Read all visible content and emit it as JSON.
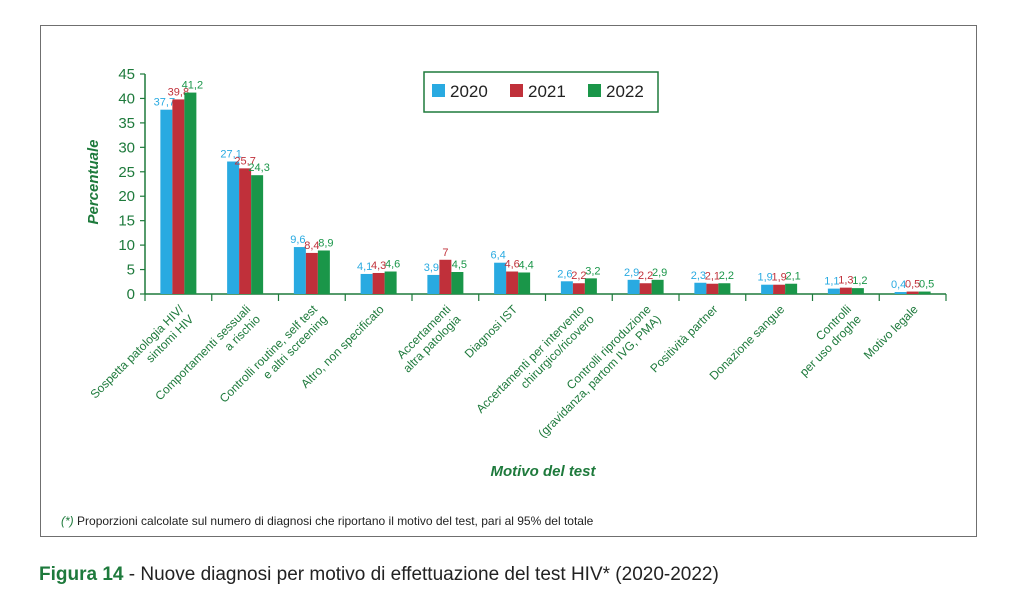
{
  "colors": {
    "2020": "#29aae1",
    "2021": "#c0303a",
    "2022": "#1a9649",
    "axis": "#1e7a3c",
    "text": "#222222"
  },
  "chart_data": {
    "type": "bar",
    "ylabel": "Percentuale",
    "xlabel": "Motivo del test",
    "ylim": [
      0,
      45
    ],
    "yticks": [
      0,
      5,
      10,
      15,
      20,
      25,
      30,
      35,
      40,
      45
    ],
    "legend_position": "top-center",
    "categories": [
      [
        "Sospetta patologia HIV/",
        "sintomi HIV"
      ],
      [
        "Comportamenti sessuali",
        "a rischio"
      ],
      [
        "Controlli routine, self test",
        "e altri screening"
      ],
      [
        "Altro, non specificato"
      ],
      [
        "Accertamenti",
        "altra patologia"
      ],
      [
        "Diagnosi IST"
      ],
      [
        "Accertamenti per intervento",
        "chirurgico/ricovero"
      ],
      [
        "Controlli riproduzione",
        "(gravidanza, partom IVG, PMA)"
      ],
      [
        "Positività partner"
      ],
      [
        "Donazione sangue"
      ],
      [
        "Controlli",
        "per uso droghe"
      ],
      [
        "Motivo legale"
      ]
    ],
    "series": [
      {
        "name": "2020",
        "values": [
          37.7,
          27.1,
          9.6,
          4.1,
          3.9,
          6.4,
          2.6,
          2.9,
          2.3,
          1.9,
          1.1,
          0.4
        ],
        "labels": [
          "37,7",
          "27,1",
          "9,6",
          "4,1",
          "3,9",
          "6,4",
          "2,6",
          "2,9",
          "2,3",
          "1,9",
          "1,1",
          "0,4"
        ]
      },
      {
        "name": "2021",
        "values": [
          39.8,
          25.7,
          8.4,
          4.3,
          7,
          4.6,
          2.2,
          2.2,
          2.1,
          1.9,
          1.3,
          0.5
        ],
        "labels": [
          "39,8",
          "25,7",
          "8,4",
          "4,3",
          "7",
          "4,6",
          "2,2",
          "2,2",
          "2,1",
          "1,9",
          "1,3",
          "0,5"
        ]
      },
      {
        "name": "2022",
        "values": [
          41.2,
          24.3,
          8.9,
          4.6,
          4.5,
          4.4,
          3.2,
          2.9,
          2.2,
          2.1,
          1.2,
          0.5
        ],
        "labels": [
          "41,2",
          "24,3",
          "8,9",
          "4,6",
          "4,5",
          "4,4",
          "3,2",
          "2,9",
          "2,2",
          "2,1",
          "1,2",
          "0,5"
        ]
      }
    ]
  },
  "footnote": {
    "mark": "(*)",
    "text": "Proporzioni calcolate sul numero di diagnosi che riportano il motivo del test, pari al 95% del totale"
  },
  "caption": {
    "figure": "Figura 14",
    "text": "- Nuove diagnosi per motivo di effettuazione del test HIV* (2020-2022)"
  }
}
